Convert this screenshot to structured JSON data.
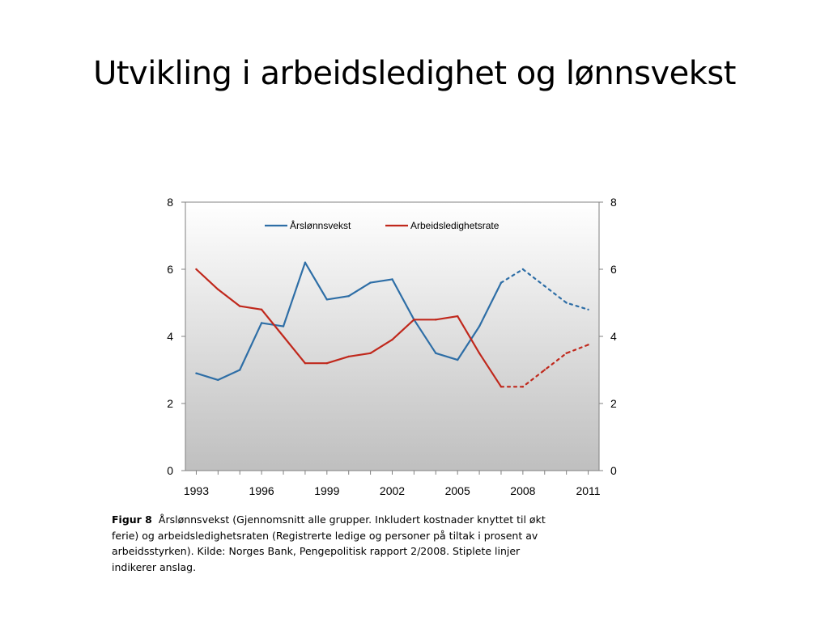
{
  "slide": {
    "title": "Utvikling i arbeidsledighet og lønnsvekst"
  },
  "caption": {
    "label": "Figur 8",
    "text": "Årslønnsvekst (Gjennomsnitt alle grupper. Inkludert kostnader knyttet til økt ferie) og arbeidsledighetsraten (Registrerte ledige og personer på tiltak i prosent av arbeidsstyrken). Kilde: Norges Bank, Pengepolitisk rapport 2/2008. Stiplete linjer indikerer anslag."
  },
  "chart_data": {
    "type": "line",
    "title": "",
    "xlabel": "",
    "ylabel": "",
    "xlim": [
      1992.5,
      2011.5
    ],
    "ylim": [
      0,
      8
    ],
    "yticks": [
      0,
      2,
      4,
      6,
      8
    ],
    "xticks": [
      1993,
      1996,
      1999,
      2002,
      2005,
      2008,
      2011
    ],
    "y_axis_right": true,
    "grid": false,
    "legend_position": "top-center",
    "background": "gradient-gray",
    "forecast_start_index": 15,
    "x": [
      1993,
      1994,
      1995,
      1996,
      1997,
      1998,
      1999,
      2000,
      2001,
      2002,
      2003,
      2004,
      2005,
      2006,
      2007,
      2008,
      2009,
      2010,
      2011
    ],
    "series": [
      {
        "name": "Årslønnsvekst",
        "color": "#2e6ea6",
        "values": [
          2.9,
          2.7,
          3.0,
          4.4,
          4.3,
          6.2,
          5.1,
          5.2,
          5.6,
          5.7,
          4.5,
          3.5,
          3.3,
          4.3,
          5.6,
          6.0,
          5.5,
          5.0,
          4.8
        ]
      },
      {
        "name": "Arbeidsledighetsrate",
        "color": "#c0281c",
        "values": [
          6.0,
          5.4,
          4.9,
          4.8,
          4.0,
          3.2,
          3.2,
          3.4,
          3.5,
          3.9,
          4.5,
          4.5,
          4.6,
          3.5,
          2.5,
          2.5,
          3.0,
          3.5,
          3.75
        ]
      }
    ]
  }
}
